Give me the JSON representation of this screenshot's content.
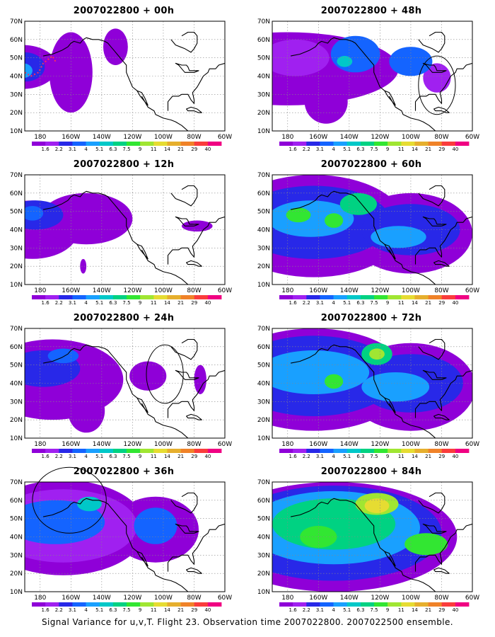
{
  "figure": {
    "caption": "Signal Variance for u,v,T. Flight 23. Observation time 2007022800. 2007022500 ensemble."
  },
  "chart_data": {
    "type": "heatmap",
    "lat_ticks": [
      "70N",
      "60N",
      "50N",
      "40N",
      "30N",
      "20N",
      "10N"
    ],
    "lon_ticks": [
      "180",
      "160W",
      "140W",
      "120W",
      "100W",
      "80W",
      "60W"
    ],
    "colorbar": {
      "levels": [
        "1.6",
        "2.2",
        "3.1",
        "4",
        "5.1",
        "6.3",
        "7.5",
        "9",
        "11",
        "14",
        "21",
        "29",
        "40"
      ],
      "colors": [
        "#8f00d8",
        "#a020f0",
        "#2828e8",
        "#1464ff",
        "#19a0ff",
        "#00c8c8",
        "#00d282",
        "#32e632",
        "#a0e632",
        "#e6dc32",
        "#e6af2d",
        "#f08228",
        "#fa3c3c",
        "#f00082"
      ]
    },
    "panels": [
      {
        "id": "p00",
        "title": "2007022800 + 00h",
        "lead_hours": 0,
        "fields": [
          {
            "level": 0,
            "lon": 191,
            "lat": 45,
            "rx": 22,
            "ry": 12
          },
          {
            "level": 0,
            "lon": 160,
            "lat": 42,
            "rx": 14,
            "ry": 22
          },
          {
            "level": 0,
            "lon": 131,
            "lat": 56,
            "rx": 8,
            "ry": 10
          },
          {
            "level": 2,
            "lon": 190,
            "lat": 45,
            "rx": 13,
            "ry": 8
          },
          {
            "level": 4,
            "lon": 191,
            "lat": 43,
            "rx": 6,
            "ry": 4
          }
        ],
        "circle": null,
        "track": true
      },
      {
        "id": "p48",
        "title": "2007022800 + 48h",
        "lead_hours": 48,
        "fields": [
          {
            "level": 0,
            "lon": 180,
            "lat": 44,
            "rx": 72,
            "ry": 20
          },
          {
            "level": 0,
            "lon": 155,
            "lat": 26,
            "rx": 14,
            "ry": 12
          },
          {
            "level": 1,
            "lon": 175,
            "lat": 50,
            "rx": 22,
            "ry": 10
          },
          {
            "level": 1,
            "lon": 83,
            "lat": 39,
            "rx": 9,
            "ry": 8
          },
          {
            "level": 3,
            "lon": 136,
            "lat": 52,
            "rx": 16,
            "ry": 10
          },
          {
            "level": 3,
            "lon": 100,
            "lat": 48,
            "rx": 14,
            "ry": 8
          },
          {
            "level": 5,
            "lon": 143,
            "lat": 48,
            "rx": 5,
            "ry": 3
          }
        ],
        "circle": {
          "lon": 83,
          "lat": 35,
          "rx": 6,
          "ry": 8
        },
        "track": false
      },
      {
        "id": "p12",
        "title": "2007022800 + 12h",
        "lead_hours": 12,
        "fields": [
          {
            "level": 0,
            "lon": 185,
            "lat": 40,
            "rx": 30,
            "ry": 16
          },
          {
            "level": 0,
            "lon": 150,
            "lat": 46,
            "rx": 30,
            "ry": 14
          },
          {
            "level": 0,
            "lon": 78,
            "lat": 42,
            "rx": 10,
            "ry": 3
          },
          {
            "level": 0,
            "lon": 152,
            "lat": 20,
            "rx": 2,
            "ry": 4
          },
          {
            "level": 2,
            "lon": 183,
            "lat": 48,
            "rx": 18,
            "ry": 8
          },
          {
            "level": 3,
            "lon": 185,
            "lat": 49,
            "rx": 7,
            "ry": 4
          }
        ],
        "circle": null,
        "track": false
      },
      {
        "id": "p60",
        "title": "2007022800 + 60h",
        "lead_hours": 60,
        "fields": [
          {
            "level": 0,
            "lon": 163,
            "lat": 42,
            "rx": 60,
            "ry": 28
          },
          {
            "level": 0,
            "lon": 100,
            "lat": 38,
            "rx": 40,
            "ry": 22
          },
          {
            "level": 2,
            "lon": 163,
            "lat": 44,
            "rx": 50,
            "ry": 20
          },
          {
            "level": 2,
            "lon": 100,
            "lat": 40,
            "rx": 32,
            "ry": 14
          },
          {
            "level": 4,
            "lon": 165,
            "lat": 46,
            "rx": 28,
            "ry": 10
          },
          {
            "level": 4,
            "lon": 108,
            "lat": 36,
            "rx": 18,
            "ry": 6
          },
          {
            "level": 6,
            "lon": 134,
            "lat": 54,
            "rx": 12,
            "ry": 6
          },
          {
            "level": 7,
            "lon": 150,
            "lat": 45,
            "rx": 6,
            "ry": 4
          },
          {
            "level": 7,
            "lon": 173,
            "lat": 48,
            "rx": 8,
            "ry": 4
          }
        ],
        "circle": null,
        "track": false
      },
      {
        "id": "p24",
        "title": "2007022800 + 24h",
        "lead_hours": 24,
        "fields": [
          {
            "level": 0,
            "lon": 172,
            "lat": 42,
            "rx": 46,
            "ry": 22
          },
          {
            "level": 0,
            "lon": 150,
            "lat": 25,
            "rx": 12,
            "ry": 12
          },
          {
            "level": 0,
            "lon": 110,
            "lat": 44,
            "rx": 12,
            "ry": 8
          },
          {
            "level": 0,
            "lon": 76,
            "lat": 42,
            "rx": 4,
            "ry": 8
          },
          {
            "level": 2,
            "lon": 178,
            "lat": 48,
            "rx": 24,
            "ry": 10
          },
          {
            "level": 3,
            "lon": 165,
            "lat": 55,
            "rx": 10,
            "ry": 4
          }
        ],
        "circle": {
          "lon": 99,
          "lat": 45,
          "rx": 6,
          "ry": 8
        },
        "track": false
      },
      {
        "id": "p72",
        "title": "2007022800 + 72h",
        "lead_hours": 72,
        "fields": [
          {
            "level": 0,
            "lon": 163,
            "lat": 42,
            "rx": 62,
            "ry": 28
          },
          {
            "level": 0,
            "lon": 100,
            "lat": 38,
            "rx": 42,
            "ry": 24
          },
          {
            "level": 2,
            "lon": 163,
            "lat": 44,
            "rx": 54,
            "ry": 22
          },
          {
            "level": 2,
            "lon": 100,
            "lat": 40,
            "rx": 34,
            "ry": 16
          },
          {
            "level": 4,
            "lon": 163,
            "lat": 46,
            "rx": 36,
            "ry": 12
          },
          {
            "level": 4,
            "lon": 110,
            "lat": 38,
            "rx": 22,
            "ry": 8
          },
          {
            "level": 6,
            "lon": 122,
            "lat": 56,
            "rx": 10,
            "ry": 6
          },
          {
            "level": 7,
            "lon": 150,
            "lat": 41,
            "rx": 6,
            "ry": 4
          },
          {
            "level": 8,
            "lon": 122,
            "lat": 56,
            "rx": 5,
            "ry": 3
          }
        ],
        "circle": null,
        "track": false
      },
      {
        "id": "p36",
        "title": "2007022800 + 36h",
        "lead_hours": 36,
        "fields": [
          {
            "level": 0,
            "lon": 165,
            "lat": 45,
            "rx": 54,
            "ry": 26
          },
          {
            "level": 0,
            "lon": 105,
            "lat": 44,
            "rx": 28,
            "ry": 18
          },
          {
            "level": 1,
            "lon": 165,
            "lat": 46,
            "rx": 48,
            "ry": 20
          },
          {
            "level": 3,
            "lon": 170,
            "lat": 48,
            "rx": 32,
            "ry": 12
          },
          {
            "level": 3,
            "lon": 105,
            "lat": 46,
            "rx": 14,
            "ry": 10
          },
          {
            "level": 5,
            "lon": 148,
            "lat": 58,
            "rx": 8,
            "ry": 4
          }
        ],
        "circle": {
          "lon": 161,
          "lat": 60,
          "rx": 12,
          "ry": 9
        },
        "track": false
      },
      {
        "id": "p84",
        "title": "2007022800 + 84h",
        "lead_hours": 84,
        "fields": [
          {
            "level": 0,
            "lon": 150,
            "lat": 40,
            "rx": 80,
            "ry": 30
          },
          {
            "level": 2,
            "lon": 150,
            "lat": 42,
            "rx": 70,
            "ry": 26
          },
          {
            "level": 4,
            "lon": 150,
            "lat": 45,
            "rx": 56,
            "ry": 20
          },
          {
            "level": 6,
            "lon": 150,
            "lat": 47,
            "rx": 40,
            "ry": 14
          },
          {
            "level": 7,
            "lon": 160,
            "lat": 40,
            "rx": 12,
            "ry": 6
          },
          {
            "level": 7,
            "lon": 90,
            "lat": 36,
            "rx": 14,
            "ry": 6
          },
          {
            "level": 8,
            "lon": 122,
            "lat": 58,
            "rx": 14,
            "ry": 6
          },
          {
            "level": 9,
            "lon": 122,
            "lat": 57,
            "rx": 8,
            "ry": 4
          }
        ],
        "circle": null,
        "track": false
      }
    ]
  }
}
